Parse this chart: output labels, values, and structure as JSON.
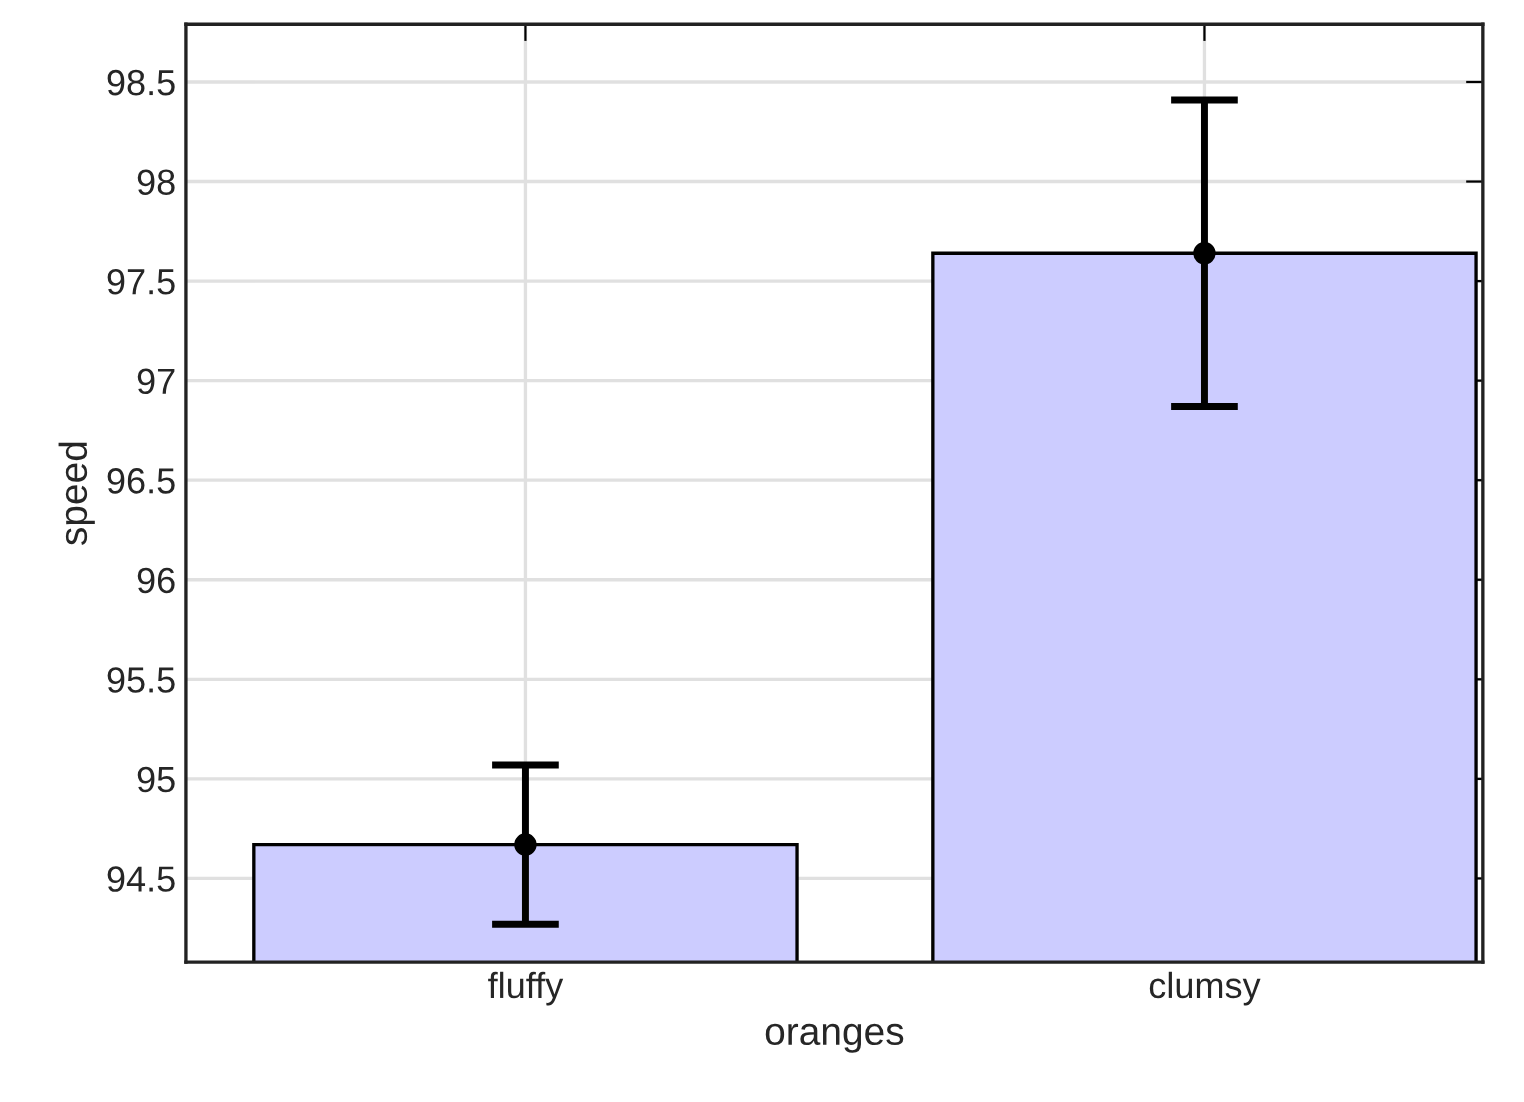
{
  "chart_data": {
    "type": "bar",
    "xlabel": "oranges",
    "ylabel": "speed",
    "categories": [
      "fluffy",
      "clumsy"
    ],
    "series": [
      {
        "color": "#ccccff",
        "values": [
          94.67,
          97.64
        ],
        "errors": [
          0.4,
          0.77
        ]
      },
      {
        "type": "scatter",
        "color": "#000000",
        "x": [
          "fluffy",
          "clumsy"
        ],
        "values": [
          94.67,
          97.64
        ]
      }
    ],
    "ylim": [
      94.08,
      98.79
    ],
    "yticks": [
      94.5,
      95,
      95.5,
      96,
      96.5,
      97,
      97.5,
      98,
      98.5
    ],
    "grid": true,
    "marker": "circle"
  }
}
